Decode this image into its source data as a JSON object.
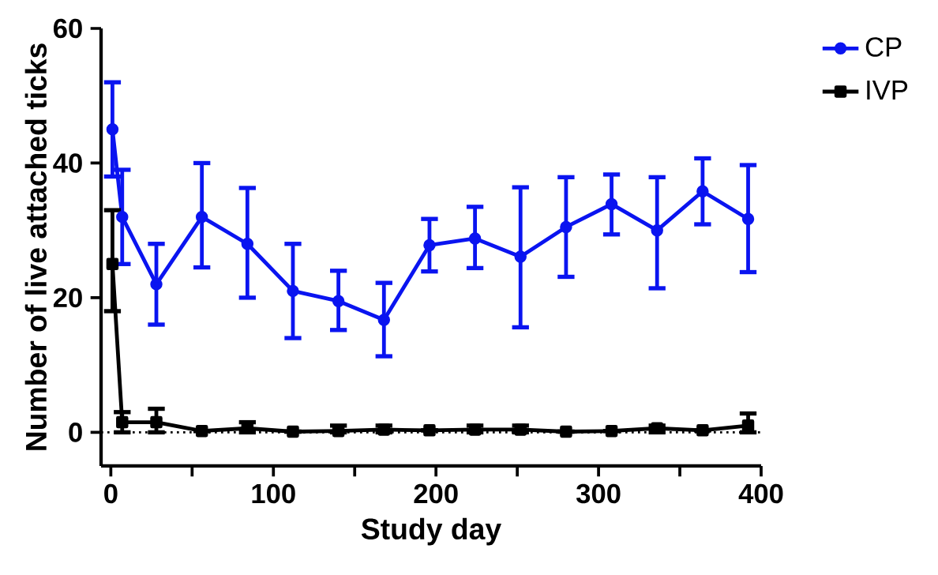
{
  "chart_data": {
    "type": "line",
    "xlabel": "Study day",
    "ylabel": "Number of live attached ticks",
    "xlim": [
      -6,
      400
    ],
    "ylim": [
      -5,
      60
    ],
    "xticks": [
      0,
      {
        "value": 50,
        "label": null
      },
      100,
      {
        "value": 150,
        "label": null
      },
      200,
      {
        "value": 250,
        "label": null
      },
      300,
      {
        "value": 350,
        "label": null
      },
      400
    ],
    "yticks": [
      0,
      20,
      40,
      60
    ],
    "legend": "top right",
    "grid": false,
    "series": [
      {
        "name": "CP",
        "color": "#0a14f0",
        "marker": "circle",
        "x": [
          1,
          7,
          28,
          56,
          84,
          112,
          140,
          168,
          196,
          224,
          252,
          280,
          308,
          336,
          364,
          392
        ],
        "values": [
          45,
          32,
          22,
          32,
          28,
          21,
          19.5,
          16.7,
          27.8,
          28.8,
          26.1,
          30.5,
          33.9,
          30,
          35.8,
          31.7
        ],
        "errors": [
          [
            38,
            52
          ],
          [
            25,
            39
          ],
          [
            16,
            28
          ],
          [
            24.5,
            40
          ],
          [
            20,
            36.3
          ],
          [
            14,
            28
          ],
          [
            15.2,
            24
          ],
          [
            11.3,
            22.2
          ],
          [
            23.9,
            31.7
          ],
          [
            24.4,
            33.5
          ],
          [
            15.6,
            36.4
          ],
          [
            23.1,
            37.9
          ],
          [
            29.4,
            38.3
          ],
          [
            21.4,
            37.9
          ],
          [
            30.9,
            40.7
          ],
          [
            23.8,
            39.7
          ]
        ]
      },
      {
        "name": "IVP",
        "color": "#000000",
        "marker": "square",
        "x": [
          1,
          7,
          28,
          56,
          84,
          112,
          140,
          168,
          196,
          224,
          252,
          280,
          308,
          336,
          364,
          392
        ],
        "values": [
          25,
          1.5,
          1.5,
          0.2,
          0.6,
          0.1,
          0.2,
          0.4,
          0.3,
          0.4,
          0.4,
          0.1,
          0.2,
          0.6,
          0.3,
          1
        ],
        "errors": [
          [
            18,
            33
          ],
          [
            0,
            3
          ],
          [
            0,
            3.5
          ],
          null,
          [
            0,
            1.5
          ],
          null,
          [
            0,
            1
          ],
          [
            0,
            1
          ],
          null,
          [
            0,
            1
          ],
          [
            0,
            1
          ],
          null,
          null,
          [
            0,
            1
          ],
          null,
          [
            0,
            2.8
          ]
        ]
      }
    ],
    "ref_lines": [
      {
        "axis": "y",
        "value": 0,
        "color": "#000000",
        "line_style": "dotted"
      }
    ]
  }
}
